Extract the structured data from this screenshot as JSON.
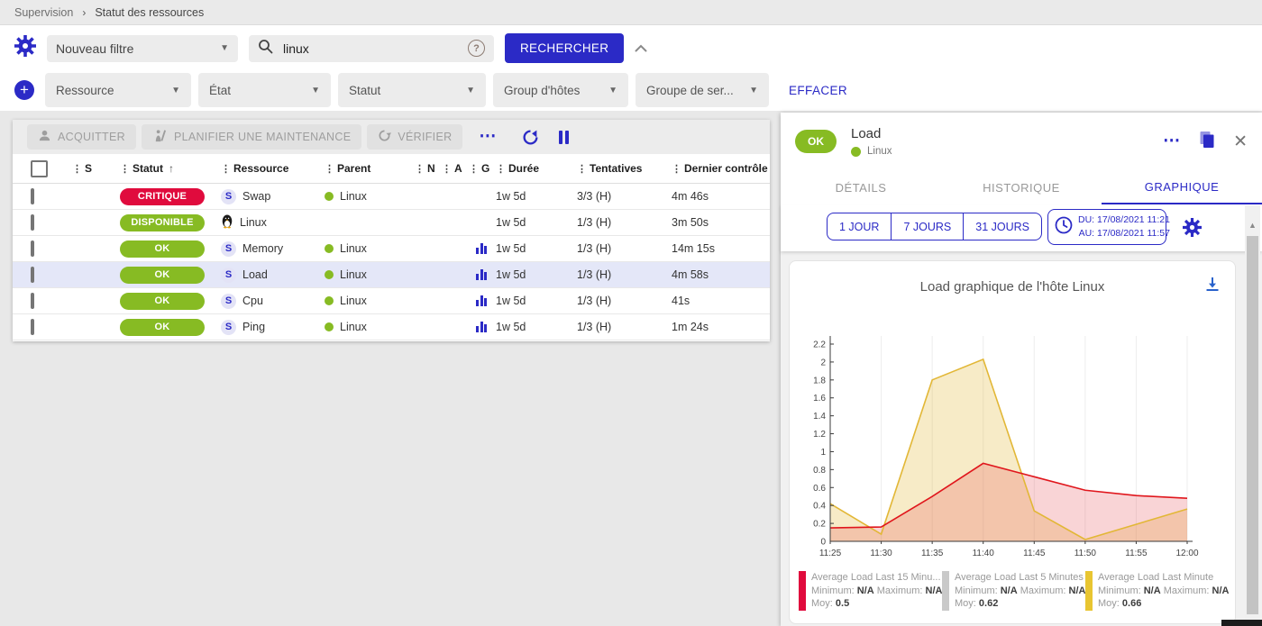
{
  "colors": {
    "primary": "#2b2ac6",
    "critical": "#e00b3d",
    "ok": "#87bb23",
    "selected_row": "#e4e7f8"
  },
  "breadcrumb": {
    "section": "Supervision",
    "page": "Statut des ressources",
    "separator": "›"
  },
  "filters": {
    "saved_filter_value": "Nouveau filtre",
    "search_value": "linux",
    "search_button_label": "RECHERCHER",
    "clear_label": "EFFACER",
    "criterias": [
      "Ressource",
      "État",
      "Statut",
      "Group d'hôtes",
      "Groupe de ser..."
    ]
  },
  "toolbar": {
    "acknowledge_label": "ACQUITTER",
    "downtime_label": "PLANIFIER UNE MAINTENANCE",
    "check_label": "VÉRIFIER",
    "more_glyph": "⋯"
  },
  "table": {
    "columns": [
      "S",
      "Statut",
      "Ressource",
      "Parent",
      "N",
      "A",
      "G",
      "Durée",
      "Tentatives",
      "Dernier contrôle"
    ],
    "sort_column": "Statut",
    "sort_glyph": "↑",
    "drag_glyph": "⋮",
    "rows": [
      {
        "status": "CRITIQUE",
        "resource": "Swap",
        "parent": "Linux",
        "duration": "1w 5d",
        "tries": "3/3 (H)",
        "last_check": "4m 46s"
      },
      {
        "status": "DISPONIBLE",
        "resource": "Linux",
        "parent": "",
        "duration": "1w 5d",
        "tries": "1/3 (H)",
        "last_check": "3m 50s"
      },
      {
        "status": "OK",
        "resource": "Memory",
        "parent": "Linux",
        "duration": "1w 5d",
        "tries": "1/3 (H)",
        "last_check": "14m 15s"
      },
      {
        "status": "OK",
        "resource": "Load",
        "parent": "Linux",
        "duration": "1w 5d",
        "tries": "1/3 (H)",
        "last_check": "4m 58s"
      },
      {
        "status": "OK",
        "resource": "Cpu",
        "parent": "Linux",
        "duration": "1w 5d",
        "tries": "1/3 (H)",
        "last_check": "41s"
      },
      {
        "status": "OK",
        "resource": "Ping",
        "parent": "Linux",
        "duration": "1w 5d",
        "tries": "1/3 (H)",
        "last_check": "1m 24s"
      }
    ]
  },
  "panel": {
    "status": "OK",
    "title": "Load",
    "parent": "Linux",
    "close_glyph": "✕",
    "more_glyph": "⋯",
    "tabs": [
      "DÉTAILS",
      "HISTORIQUE",
      "GRAPHIQUE"
    ],
    "active_tab": "GRAPHIQUE",
    "range_buttons": [
      "1 JOUR",
      "7 JOURS",
      "31 JOURS"
    ],
    "date_from": "DU: 17/08/2021 11:21",
    "date_to": "AU: 17/08/2021 11:57",
    "scroll_up_glyph": "▲"
  },
  "chart_data": {
    "type": "area",
    "title": "Load graphique de l'hôte Linux",
    "x": [
      "11:25",
      "11:30",
      "11:35",
      "11:40",
      "11:45",
      "11:50",
      "11:55",
      "12:00"
    ],
    "ylim": [
      0,
      2.2
    ],
    "y_tick_step": 0.2,
    "grid": "vertical-only",
    "legend_position": "bottom",
    "series": [
      {
        "name": "Average Load Last 15 Minutes",
        "color": "#e0161c",
        "fill": "rgba(231,76,84,0.24)",
        "values": [
          0.15,
          0.16,
          0.5,
          0.87,
          0.72,
          0.57,
          0.51,
          0.48
        ]
      },
      {
        "name": "Average Load Last 5 Minutes",
        "color": "#c9c9c9",
        "fill": "rgba(201,201,201,0.2)",
        "values": []
      },
      {
        "name": "Average Load Last Minute",
        "color": "#e2b736",
        "fill": "rgba(230,190,70,0.30)",
        "values": [
          0.42,
          0.08,
          1.8,
          2.03,
          0.34,
          0.02,
          0.19,
          0.36
        ]
      }
    ],
    "legend": [
      {
        "name": "Average Load Last 15 Minu...",
        "color": "#e00b3d",
        "min_label": "Minimum:",
        "min": "N/A",
        "max_label": "Maximum:",
        "max": "N/A",
        "avg_label": "Moy:",
        "avg": "0.5"
      },
      {
        "name": "Average Load Last 5 Minutes",
        "color": "#c9c9c9",
        "min_label": "Minimum:",
        "min": "N/A",
        "max_label": "Maximum:",
        "max": "N/A",
        "avg_label": "Moy:",
        "avg": "0.62"
      },
      {
        "name": "Average Load Last Minute",
        "color": "#e8c531",
        "min_label": "Minimum:",
        "min": "N/A",
        "max_label": "Maximum:",
        "max": "N/A",
        "avg_label": "Moy:",
        "avg": "0.66"
      }
    ]
  }
}
